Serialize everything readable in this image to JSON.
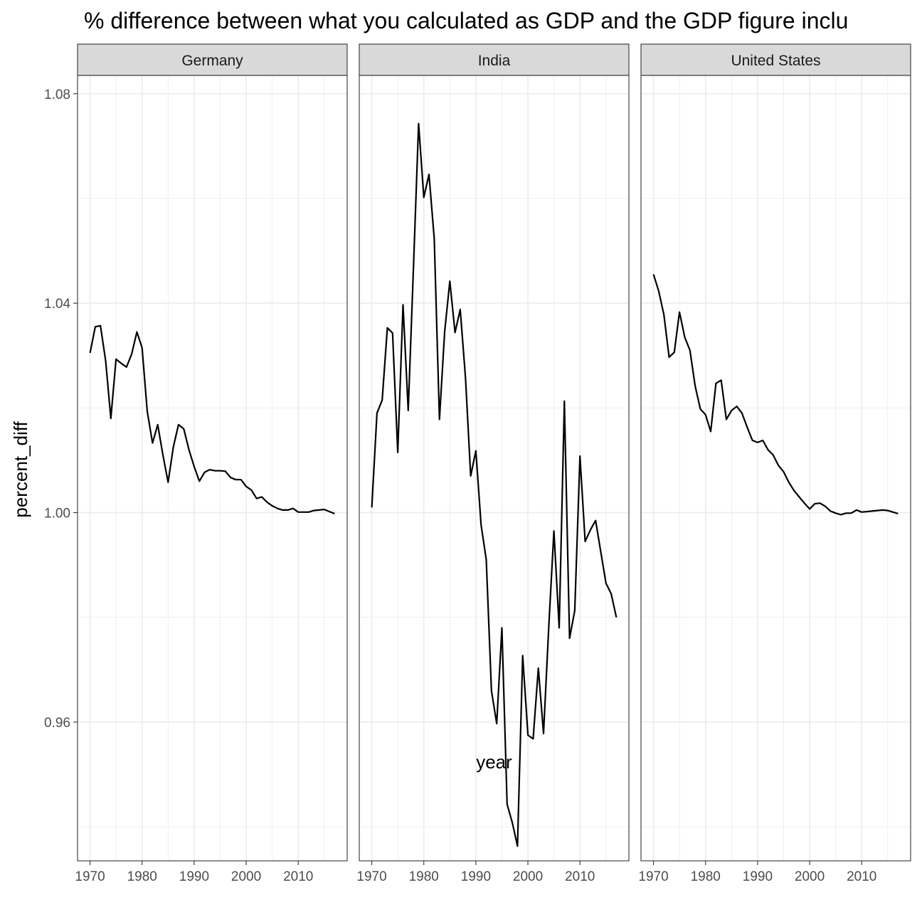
{
  "chart_data": {
    "type": "line",
    "title": "% difference between what you calculated as GDP and the GDP figure inclu",
    "xlabel": "year",
    "ylabel": "percent_diff",
    "xlim": [
      1967.6,
      2019.4
    ],
    "ylim": [
      0.9335,
      1.0835
    ],
    "x_ticks": [
      1970,
      1980,
      1990,
      2000,
      2010
    ],
    "y_ticks": [
      0.96,
      1.0,
      1.04,
      1.08
    ],
    "y_tick_labels": [
      "0.96",
      "1.00",
      "1.04",
      "1.08"
    ],
    "grid": true,
    "facets": [
      {
        "name": "Germany",
        "x": [
          1970,
          1971,
          1972,
          1973,
          1974,
          1975,
          1976,
          1977,
          1978,
          1979,
          1980,
          1981,
          1982,
          1983,
          1984,
          1985,
          1986,
          1987,
          1988,
          1989,
          1990,
          1991,
          1992,
          1993,
          1994,
          1995,
          1996,
          1997,
          1998,
          1999,
          2000,
          2001,
          2002,
          2003,
          2004,
          2005,
          2006,
          2007,
          2008,
          2009,
          2010,
          2011,
          2012,
          2013,
          2014,
          2015,
          2016,
          2017
        ],
        "y": [
          1.0305,
          1.0355,
          1.0357,
          1.029,
          1.018,
          1.0293,
          1.0285,
          1.0278,
          1.0303,
          1.0345,
          1.0315,
          1.0193,
          1.0133,
          1.0168,
          1.011,
          1.0058,
          1.0125,
          1.0168,
          1.016,
          1.012,
          1.0088,
          1.006,
          1.0077,
          1.0082,
          1.008,
          1.008,
          1.0079,
          1.0067,
          1.0063,
          1.0063,
          1.005,
          1.0043,
          1.0027,
          1.003,
          1.002,
          1.0013,
          1.0008,
          1.0005,
          1.0005,
          1.0008,
          1.0001,
          1.0001,
          1.0001,
          1.0004,
          1.0005,
          1.0006,
          1.0002,
          0.9998
        ]
      },
      {
        "name": "India",
        "x": [
          1970,
          1971,
          1972,
          1973,
          1974,
          1975,
          1976,
          1977,
          1978,
          1979,
          1980,
          1981,
          1982,
          1983,
          1984,
          1985,
          1986,
          1987,
          1988,
          1989,
          1990,
          1991,
          1992,
          1993,
          1994,
          1995,
          1996,
          1997,
          1998,
          1999,
          2000,
          2001,
          2002,
          2003,
          2004,
          2005,
          2006,
          2007,
          2008,
          2009,
          2010,
          2011,
          2012,
          2013,
          2014,
          2015,
          2016,
          2017
        ],
        "y": [
          1.001,
          1.019,
          1.0215,
          1.0353,
          1.0343,
          1.0115,
          1.0397,
          1.0195,
          1.0465,
          1.0743,
          1.0602,
          1.0646,
          1.0523,
          1.0178,
          1.0345,
          1.0442,
          1.0344,
          1.0388,
          1.0258,
          1.007,
          1.0118,
          0.9977,
          0.991,
          0.966,
          0.9597,
          0.978,
          0.9443,
          0.9408,
          0.9363,
          0.9727,
          0.9575,
          0.9568,
          0.9703,
          0.9578,
          0.978,
          0.9965,
          0.978,
          1.0213,
          0.976,
          0.9813,
          1.0108,
          0.9945,
          0.9967,
          0.9985,
          0.9925,
          0.9865,
          0.9845,
          0.98
        ]
      },
      {
        "name": "United States",
        "x": [
          1970,
          1971,
          1972,
          1973,
          1974,
          1975,
          1976,
          1977,
          1978,
          1979,
          1980,
          1981,
          1982,
          1983,
          1984,
          1985,
          1986,
          1987,
          1988,
          1989,
          1990,
          1991,
          1992,
          1993,
          1994,
          1995,
          1996,
          1997,
          1998,
          1999,
          2000,
          2001,
          2002,
          2003,
          2004,
          2005,
          2006,
          2007,
          2008,
          2009,
          2010,
          2011,
          2012,
          2013,
          2014,
          2015,
          2016,
          2017
        ],
        "y": [
          1.0455,
          1.0423,
          1.0378,
          1.0297,
          1.0306,
          1.0383,
          1.0335,
          1.031,
          1.0242,
          1.0198,
          1.0187,
          1.0155,
          1.0247,
          1.0253,
          1.0178,
          1.0195,
          1.0203,
          1.019,
          1.0163,
          1.0138,
          1.0134,
          1.0138,
          1.012,
          1.011,
          1.009,
          1.0078,
          1.0058,
          1.0042,
          1.003,
          1.0018,
          1.0007,
          1.0017,
          1.0018,
          1.0012,
          1.0003,
          0.9999,
          0.9996,
          0.9999,
          0.9999,
          1.0005,
          1.0001,
          1.0002,
          1.0003,
          1.0004,
          1.0005,
          1.0004,
          1.0001,
          0.9998
        ]
      }
    ]
  }
}
